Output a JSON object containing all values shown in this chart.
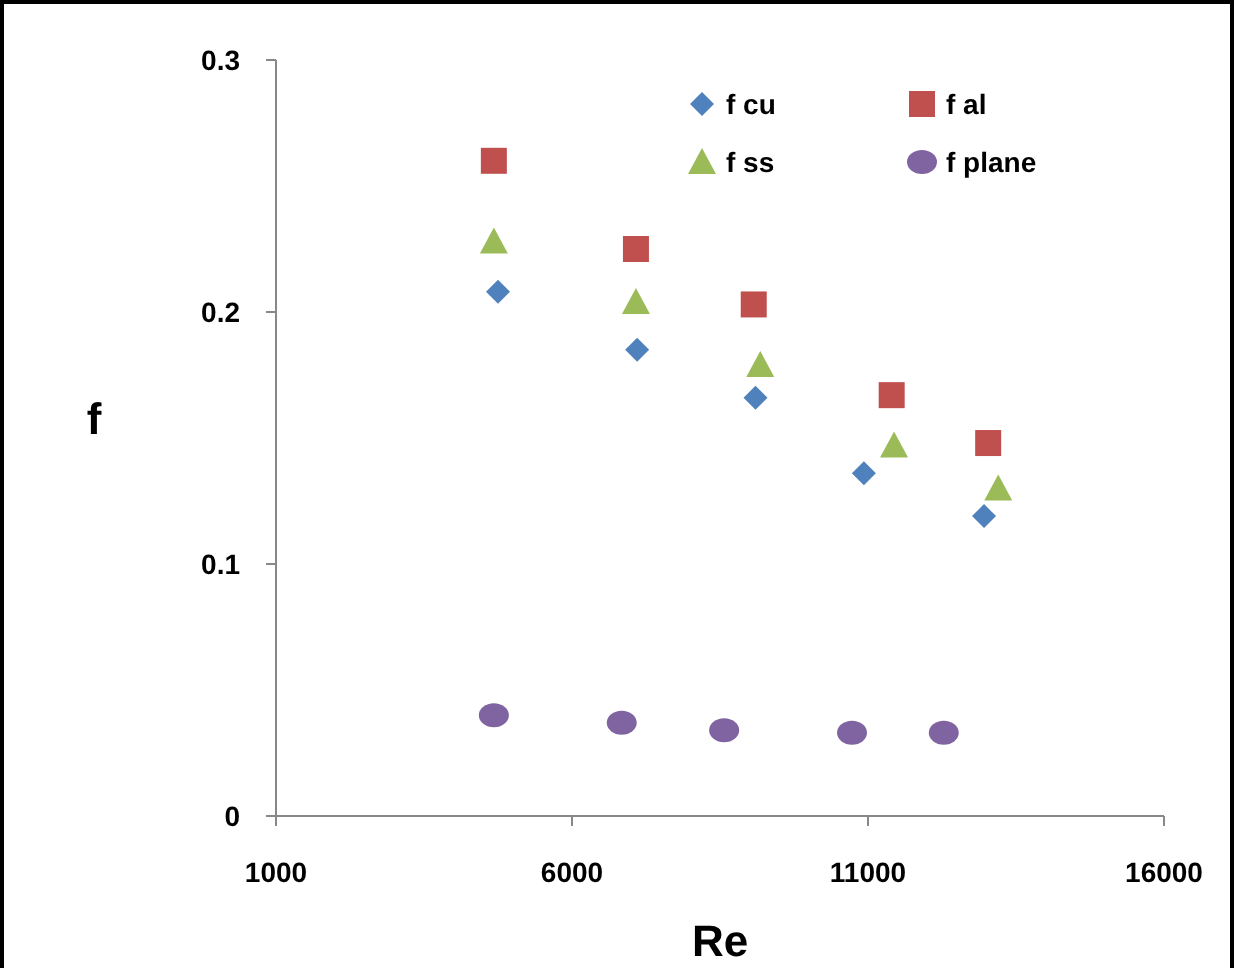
{
  "chart_data": {
    "type": "scatter",
    "xlabel": "Re",
    "ylabel": "f",
    "xlim": [
      1000,
      16000
    ],
    "xticks": [
      1000,
      6000,
      11000,
      16000
    ],
    "ylim": [
      0,
      0.3
    ],
    "yticks": [
      0,
      0.1,
      0.2,
      0.3
    ],
    "grid": false,
    "legend": "top right",
    "series": [
      {
        "name": "f cu",
        "color": "#4f81bd",
        "marker": "diamond",
        "x": [
          4750,
          7100,
          9100,
          10930,
          12960
        ],
        "values": [
          0.208,
          0.185,
          0.166,
          0.136,
          0.119
        ]
      },
      {
        "name": "f al",
        "color": "#c0504d",
        "marker": "square",
        "x": [
          4680,
          7080,
          9070,
          11400,
          13030
        ],
        "values": [
          0.26,
          0.225,
          0.203,
          0.167,
          0.148
        ]
      },
      {
        "name": "f ss",
        "color": "#9bbb59",
        "marker": "triangle",
        "x": [
          4680,
          7080,
          9180,
          11440,
          13200
        ],
        "values": [
          0.228,
          0.204,
          0.179,
          0.147,
          0.13
        ]
      },
      {
        "name": "f plane",
        "color": "#8064a2",
        "marker": "circle",
        "x": [
          4680,
          6840,
          8570,
          10730,
          12280
        ],
        "values": [
          0.04,
          0.037,
          0.034,
          0.033,
          0.033
        ]
      }
    ]
  }
}
